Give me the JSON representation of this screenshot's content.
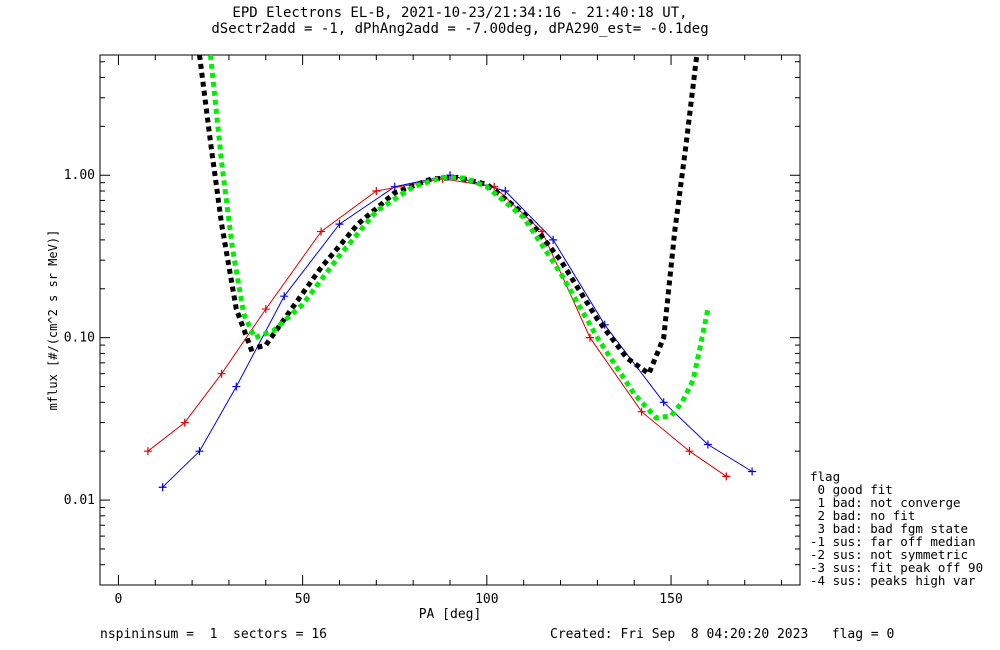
{
  "title_line1": "EPD Electrons EL-B, 2021-10-23/21:34:16 - 21:40:18 UT,",
  "title_line2": "dSectr2add = -1, dPhAng2add = -7.00deg, dPA290_est=  -0.1deg",
  "footer_left": "nspininsum =  1  sectors = 16",
  "footer_right": "Created: Fri Sep  8 04:20:20 2023   flag = 0",
  "legend": {
    "title": "flag",
    "items": [
      " 0 good fit",
      " 1 bad: not converge",
      " 2 bad: no fit",
      " 3 bad: bad fgm state",
      "-1 sus: far off median",
      "-2 sus: not symmetric",
      "-3 sus: fit peak off 90",
      "-4 sus: peaks high var"
    ]
  },
  "chart_data": {
    "type": "line",
    "xlabel": "PA [deg]",
    "ylabel": "mflux [#/(cm^2 s sr MeV)]",
    "xlim": [
      -5,
      185
    ],
    "ylim": [
      0.003,
      5.5
    ],
    "yscale": "log",
    "x_ticks": [
      0,
      50,
      100,
      150
    ],
    "x_tick_labels": [
      "0",
      "50",
      "100",
      "150"
    ],
    "y_ticks": [
      0.01,
      0.1,
      1.0
    ],
    "y_tick_labels": [
      "0.01",
      "0.10",
      "1.00"
    ],
    "colors": {
      "red_series": "#e00000",
      "blue_series": "#0000e0",
      "fit_black": "#000000",
      "fit_green": "#00ee00"
    },
    "series": [
      {
        "color": "#0000e0",
        "marker": "+",
        "x": [
          12,
          22,
          32,
          45,
          60,
          75,
          90,
          105,
          118,
          132,
          148,
          160,
          172
        ],
        "y": [
          0.012,
          0.02,
          0.05,
          0.18,
          0.5,
          0.85,
          1.0,
          0.8,
          0.4,
          0.12,
          0.04,
          0.022,
          0.015
        ]
      },
      {
        "color": "#e00000",
        "marker": "+",
        "x": [
          8,
          18,
          28,
          40,
          55,
          70,
          88,
          102,
          115,
          128,
          142,
          155,
          165
        ],
        "y": [
          0.02,
          0.03,
          0.06,
          0.15,
          0.45,
          0.8,
          0.95,
          0.85,
          0.45,
          0.1,
          0.035,
          0.02,
          0.014
        ]
      },
      {
        "name": "fit (black)",
        "color": "#000000",
        "x": [
          22,
          25,
          28,
          32,
          36,
          40,
          45,
          55,
          65,
          75,
          85,
          92,
          100,
          110,
          120,
          130,
          138,
          144,
          148,
          151,
          154,
          157
        ],
        "y": [
          5.5,
          1.6,
          0.5,
          0.15,
          0.085,
          0.09,
          0.13,
          0.27,
          0.5,
          0.78,
          0.95,
          0.97,
          0.88,
          0.58,
          0.3,
          0.13,
          0.075,
          0.06,
          0.1,
          0.45,
          1.5,
          5.5
        ]
      },
      {
        "name": "fit (green)",
        "color": "#00ee00",
        "x": [
          25,
          28,
          31,
          34,
          37,
          42,
          50,
          60,
          70,
          80,
          88,
          94,
          100,
          110,
          120,
          130,
          140,
          146,
          150,
          153,
          156,
          158,
          160
        ],
        "y": [
          5.5,
          1.2,
          0.35,
          0.14,
          0.1,
          0.11,
          0.16,
          0.32,
          0.6,
          0.85,
          0.97,
          0.96,
          0.85,
          0.55,
          0.25,
          0.1,
          0.045,
          0.032,
          0.033,
          0.04,
          0.055,
          0.09,
          0.15
        ]
      }
    ]
  }
}
